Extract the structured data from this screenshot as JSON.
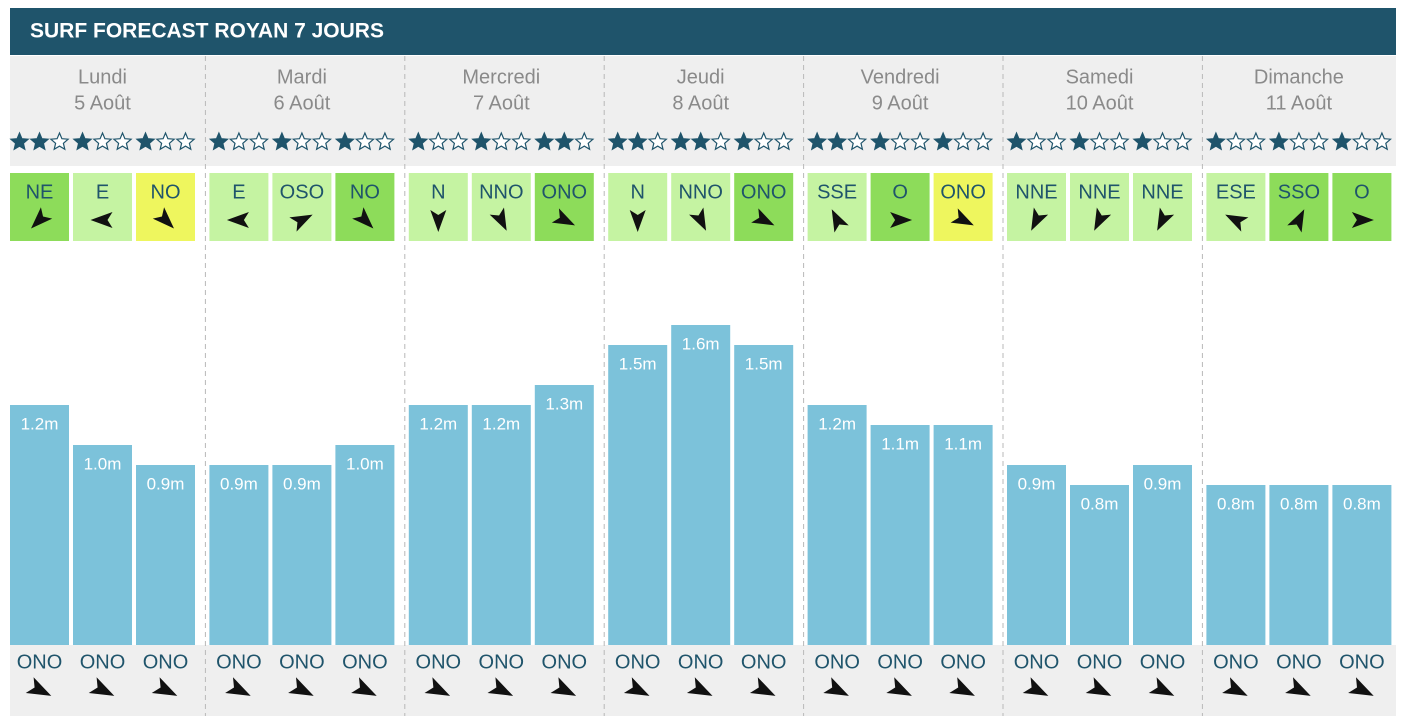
{
  "header": {
    "title": "SURF FORECAST ROYAN 7 JOURS"
  },
  "days": [
    {
      "day": "Lundi",
      "date": "5 Août",
      "slots": [
        {
          "stars": 2,
          "wind": "NE",
          "wind_color": "#8ddc5a",
          "wave": 1.2,
          "wave_label": "1.2m",
          "swell": "ONO"
        },
        {
          "stars": 1,
          "wind": "E",
          "wind_color": "#c5f3a2",
          "wave": 1.0,
          "wave_label": "1.0m",
          "swell": "ONO"
        },
        {
          "stars": 1,
          "wind": "NO",
          "wind_color": "#eef65e",
          "wave": 0.9,
          "wave_label": "0.9m",
          "swell": "ONO"
        }
      ]
    },
    {
      "day": "Mardi",
      "date": "6 Août",
      "slots": [
        {
          "stars": 1,
          "wind": "E",
          "wind_color": "#c5f3a2",
          "wave": 0.9,
          "wave_label": "0.9m",
          "swell": "ONO"
        },
        {
          "stars": 1,
          "wind": "OSO",
          "wind_color": "#c5f3a2",
          "wave": 0.9,
          "wave_label": "0.9m",
          "swell": "ONO"
        },
        {
          "stars": 1,
          "wind": "NO",
          "wind_color": "#8ddc5a",
          "wave": 1.0,
          "wave_label": "1.0m",
          "swell": "ONO"
        }
      ]
    },
    {
      "day": "Mercredi",
      "date": "7 Août",
      "slots": [
        {
          "stars": 1,
          "wind": "N",
          "wind_color": "#c5f3a2",
          "wave": 1.2,
          "wave_label": "1.2m",
          "swell": "ONO"
        },
        {
          "stars": 1,
          "wind": "NNO",
          "wind_color": "#c5f3a2",
          "wave": 1.2,
          "wave_label": "1.2m",
          "swell": "ONO"
        },
        {
          "stars": 2,
          "wind": "ONO",
          "wind_color": "#8ddc5a",
          "wave": 1.3,
          "wave_label": "1.3m",
          "swell": "ONO"
        }
      ]
    },
    {
      "day": "Jeudi",
      "date": "8 Août",
      "slots": [
        {
          "stars": 2,
          "wind": "N",
          "wind_color": "#c5f3a2",
          "wave": 1.5,
          "wave_label": "1.5m",
          "swell": "ONO"
        },
        {
          "stars": 2,
          "wind": "NNO",
          "wind_color": "#c5f3a2",
          "wave": 1.6,
          "wave_label": "1.6m",
          "swell": "ONO"
        },
        {
          "stars": 1,
          "wind": "ONO",
          "wind_color": "#8ddc5a",
          "wave": 1.5,
          "wave_label": "1.5m",
          "swell": "ONO"
        }
      ]
    },
    {
      "day": "Vendredi",
      "date": "9 Août",
      "slots": [
        {
          "stars": 2,
          "wind": "SSE",
          "wind_color": "#c5f3a2",
          "wave": 1.2,
          "wave_label": "1.2m",
          "swell": "ONO"
        },
        {
          "stars": 1,
          "wind": "O",
          "wind_color": "#8ddc5a",
          "wave": 1.1,
          "wave_label": "1.1m",
          "swell": "ONO"
        },
        {
          "stars": 1,
          "wind": "ONO",
          "wind_color": "#eef65e",
          "wave": 1.1,
          "wave_label": "1.1m",
          "swell": "ONO"
        }
      ]
    },
    {
      "day": "Samedi",
      "date": "10 Août",
      "slots": [
        {
          "stars": 1,
          "wind": "NNE",
          "wind_color": "#c5f3a2",
          "wave": 0.9,
          "wave_label": "0.9m",
          "swell": "ONO"
        },
        {
          "stars": 1,
          "wind": "NNE",
          "wind_color": "#c5f3a2",
          "wave": 0.8,
          "wave_label": "0.8m",
          "swell": "ONO"
        },
        {
          "stars": 1,
          "wind": "NNE",
          "wind_color": "#c5f3a2",
          "wave": 0.9,
          "wave_label": "0.9m",
          "swell": "ONO"
        }
      ]
    },
    {
      "day": "Dimanche",
      "date": "11 Août",
      "slots": [
        {
          "stars": 1,
          "wind": "ESE",
          "wind_color": "#c5f3a2",
          "wave": 0.8,
          "wave_label": "0.8m",
          "swell": "ONO"
        },
        {
          "stars": 1,
          "wind": "SSO",
          "wind_color": "#8ddc5a",
          "wave": 0.8,
          "wave_label": "0.8m",
          "swell": "ONO"
        },
        {
          "stars": 1,
          "wind": "O",
          "wind_color": "#8ddc5a",
          "wave": 0.8,
          "wave_label": "0.8m",
          "swell": "ONO"
        }
      ]
    }
  ]
}
